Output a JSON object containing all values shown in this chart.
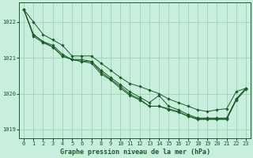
{
  "xlabel": "Graphe pression niveau de la mer (hPa)",
  "ylim": [
    1018.75,
    1022.55
  ],
  "xlim": [
    -0.5,
    23.5
  ],
  "yticks": [
    1019,
    1020,
    1021,
    1022
  ],
  "xticks": [
    0,
    1,
    2,
    3,
    4,
    5,
    6,
    7,
    8,
    9,
    10,
    11,
    12,
    13,
    14,
    15,
    16,
    17,
    18,
    19,
    20,
    21,
    22,
    23
  ],
  "bg_color": "#c8eedd",
  "grid_color": "#99ccaa",
  "line_color": "#1a5c28",
  "lines": [
    [
      1022.35,
      1022.0,
      1021.65,
      1021.5,
      1021.35,
      1021.05,
      1021.05,
      1021.05,
      1020.85,
      1020.65,
      1020.45,
      1020.28,
      1020.2,
      1020.1,
      1020.0,
      1019.85,
      1019.75,
      1019.65,
      1019.55,
      1019.5,
      1019.55,
      1019.58,
      1020.06,
      1020.15
    ],
    [
      1022.35,
      1021.65,
      1021.45,
      1021.35,
      1021.1,
      1020.95,
      1020.95,
      1020.9,
      1020.65,
      1020.45,
      1020.25,
      1020.05,
      1019.9,
      1019.75,
      1019.95,
      1019.65,
      1019.55,
      1019.42,
      1019.32,
      1019.32,
      1019.32,
      1019.32,
      1019.85,
      1020.15
    ],
    [
      1022.35,
      1021.65,
      1021.45,
      1021.3,
      1021.05,
      1020.95,
      1020.9,
      1020.9,
      1020.6,
      1020.4,
      1020.2,
      1019.98,
      1019.85,
      1019.65,
      1019.65,
      1019.58,
      1019.5,
      1019.38,
      1019.3,
      1019.3,
      1019.3,
      1019.3,
      1019.85,
      1020.15
    ],
    [
      1022.35,
      1021.6,
      1021.42,
      1021.3,
      1021.05,
      1020.95,
      1020.9,
      1020.85,
      1020.55,
      1020.38,
      1020.15,
      1019.95,
      1019.82,
      1019.65,
      1019.65,
      1019.55,
      1019.48,
      1019.37,
      1019.28,
      1019.28,
      1019.28,
      1019.28,
      1019.82,
      1020.12
    ]
  ],
  "marker": "D",
  "marker_size": 1.8,
  "line_width": 0.7,
  "label_fontsize": 6.0,
  "tick_fontsize": 5.0
}
